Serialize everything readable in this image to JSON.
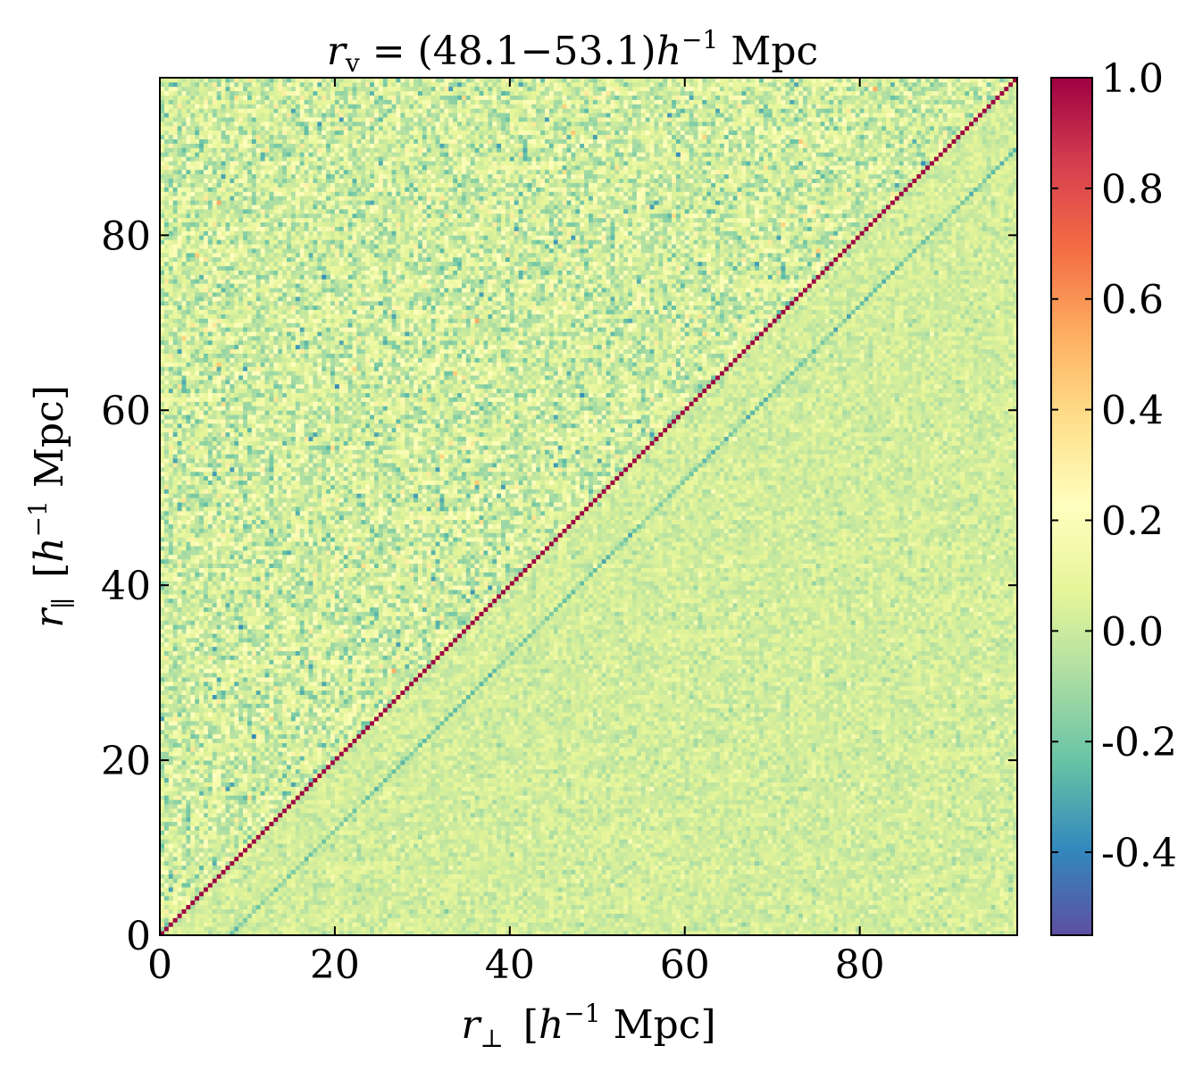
{
  "chart_data": {
    "type": "heatmap",
    "title": {
      "var": "r",
      "sub": "v",
      "eq": " = ",
      "range": "(48.1−53.1)",
      "unit_var": "h",
      "exp": "−1",
      "unit": " Mpc"
    },
    "xlabel": {
      "var": "r",
      "sub": "⊥",
      "open": "[",
      "unit_var": "h",
      "exp": "−1",
      "unit": " Mpc",
      "close": "]"
    },
    "ylabel": {
      "var": "r",
      "sub": "∥",
      "open": "[",
      "unit_var": "h",
      "exp": "−1",
      "unit": " Mpc",
      "close": "]"
    },
    "xlim": [
      0,
      98
    ],
    "ylim": [
      0,
      98
    ],
    "xticks": [
      "0",
      "20",
      "40",
      "60",
      "80"
    ],
    "yticks": [
      "0",
      "20",
      "40",
      "60",
      "80"
    ],
    "colormap": "Spectral_r",
    "vmin": -0.55,
    "vmax": 1.0,
    "colorbar_ticks": [
      "1.0",
      "0.8",
      "0.6",
      "0.4",
      "0.2",
      "0.0",
      "-0.2",
      "-0.4"
    ],
    "structure": {
      "diagonal_value": 1.0,
      "upper_triangle_noise_std": 0.12,
      "lower_triangle_noise_std": 0.05,
      "background_value": 0.02,
      "secondary_band_offset": 8,
      "secondary_band_value": -0.2
    }
  },
  "colors": {
    "axes_frame": "#000000",
    "diagonal": "#9e0142"
  }
}
